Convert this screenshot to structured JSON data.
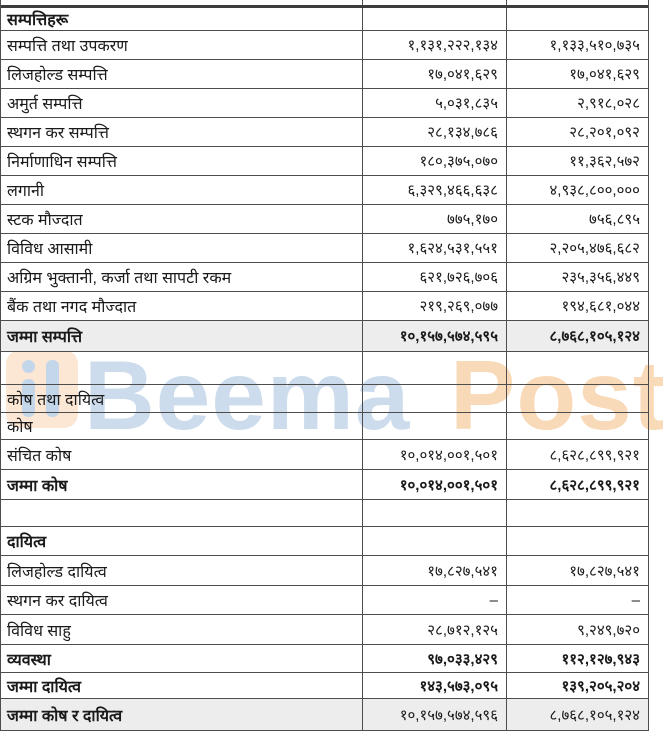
{
  "watermark": {
    "text_blue": "Beema",
    "text_orange": "Post",
    "color_blue": "#cddcec",
    "color_orange": "#f9dab8",
    "icon_bg": "#fce6d4",
    "icon_glyph": "#c3d6ea"
  },
  "table": {
    "columns": [
      "label",
      "amount_col_1",
      "amount_col_2"
    ],
    "rows": [
      {
        "label": "",
        "v1": "",
        "v2": "",
        "style": "partial"
      },
      {
        "label": "सम्पत्तिहरू",
        "v1": "",
        "v2": "",
        "style": "section-bold"
      },
      {
        "label": "सम्पत्ति तथा उपकरण",
        "v1": "१,१३१,२२२,१३४",
        "v2": "१,१३३,५१०,७३५",
        "style": "item"
      },
      {
        "label": "लिजहोल्ड सम्पत्ति",
        "v1": "१७,०४१,६२९",
        "v2": "१७,०४१,६२९",
        "style": "item"
      },
      {
        "label": "अमुर्त सम्पत्ति",
        "v1": "५,०३१,८३५",
        "v2": "२,९१८,०२८",
        "style": "item"
      },
      {
        "label": "स्थगन कर सम्पत्ति",
        "v1": "२८,१३४,७८६",
        "v2": "२८,२०१,०९२",
        "style": "item"
      },
      {
        "label": "निर्माणाधिन सम्पत्ति",
        "v1": "१८०,३७५,०७०",
        "v2": "११,३६२,५७२",
        "style": "item"
      },
      {
        "label": "लगानी",
        "v1": "६,३२९,४६६,६३८",
        "v2": "४,९३८,८००,०००",
        "style": "item"
      },
      {
        "label": "स्टक मौज्दात",
        "v1": "७७५,१७०",
        "v2": "७५६,८९५",
        "style": "item"
      },
      {
        "label": "विविध आसामी",
        "v1": "१,६२४,५३१,५५१",
        "v2": "२,२०५,४७६,६८२",
        "style": "item"
      },
      {
        "label": "अग्रिम भुक्तानी, कर्जा तथा सापटी रकम",
        "v1": "६२१,७२६,७०६",
        "v2": "२३५,३५६,४४९",
        "style": "item"
      },
      {
        "label": "बैंक तथा नगद मौज्दात",
        "v1": "२१९,२६९,०७७",
        "v2": "१९४,६८१,०४४",
        "style": "item"
      },
      {
        "label": "जम्मा सम्पत्ति",
        "v1": "१०,१५७,५७४,५९५",
        "v2": "८,७६८,१०५,१२४",
        "style": "total-shaded"
      },
      {
        "label": "",
        "v1": "",
        "v2": "",
        "style": "empty"
      },
      {
        "label": "कोष तथा दायित्व",
        "v1": "",
        "v2": "",
        "style": "section"
      },
      {
        "label": "कोष",
        "v1": "",
        "v2": "",
        "style": "section"
      },
      {
        "label": "संचित कोष",
        "v1": "१०,०१४,००१,५०१",
        "v2": "८,६२८,८९९,९२१",
        "style": "item"
      },
      {
        "label": "जम्मा कोष",
        "v1": "१०,०१४,००१,५०१",
        "v2": "८,६२८,८९९,९२१",
        "style": "total"
      },
      {
        "label": "",
        "v1": "",
        "v2": "",
        "style": "empty"
      },
      {
        "label": "दायित्व",
        "v1": "",
        "v2": "",
        "style": "section-bold"
      },
      {
        "label": "लिजहोल्ड दायित्व",
        "v1": "१७,८२७,५४१",
        "v2": "१७,८२७,५४१",
        "style": "item"
      },
      {
        "label": "स्थगन कर दायित्व",
        "v1": "–",
        "v2": "–",
        "style": "item"
      },
      {
        "label": "विविध साहु",
        "v1": "२८,७१२,१२५",
        "v2": "९,२४९,७२०",
        "style": "item"
      },
      {
        "label": "व्यवस्था",
        "v1": "९७,०३३,४२९",
        "v2": "११२,१२७,९४३",
        "style": "total"
      },
      {
        "label": "जम्मा दायित्व",
        "v1": "१४३,५७३,०९५",
        "v2": "१३९,२०५,२०४",
        "style": "total"
      },
      {
        "label": "जम्मा कोष र दायित्व",
        "v1": "१०,१५७,५७४,५९६",
        "v2": "८,७६८,१०५,१२४",
        "style": "grand-shaded"
      }
    ]
  }
}
